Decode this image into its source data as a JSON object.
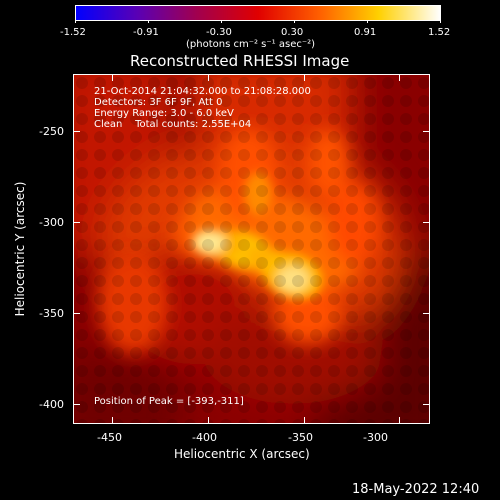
{
  "colorbar": {
    "tick_labels": [
      "-1.52",
      "-0.91",
      "-0.30",
      "0.30",
      "0.91",
      "1.52"
    ],
    "unit_label": "(photons cm⁻² s⁻¹ asec⁻²)",
    "colormap": [
      "#0000ff",
      "#5a00b4",
      "#a00050",
      "#e00000",
      "#ff6000",
      "#ffd000",
      "#ffffff"
    ]
  },
  "image": {
    "title": "Reconstructed RHESSI Image",
    "info_lines": [
      "21-Oct-2014 21:04:32.000 to 21:08:28.000",
      "Detectors: 3F 6F 9F, Att 0",
      "Energy Range: 3.0 - 6.0 keV",
      "Clean    Total counts: 2.55E+04"
    ],
    "peak_label": "Position of Peak = [-393,-311]",
    "x_axis": {
      "title": "Heliocentric X (arcsec)",
      "ticks": [
        "-450",
        "-400",
        "-350",
        "-300"
      ],
      "range": [
        -467,
        -278
      ]
    },
    "y_axis": {
      "title": "Heliocentric Y (arcsec)",
      "ticks": [
        "-250",
        "-300",
        "-350",
        "-400"
      ],
      "range": [
        -412,
        -222
      ]
    }
  },
  "footer": {
    "timestamp": "18-May-2022 12:40"
  }
}
